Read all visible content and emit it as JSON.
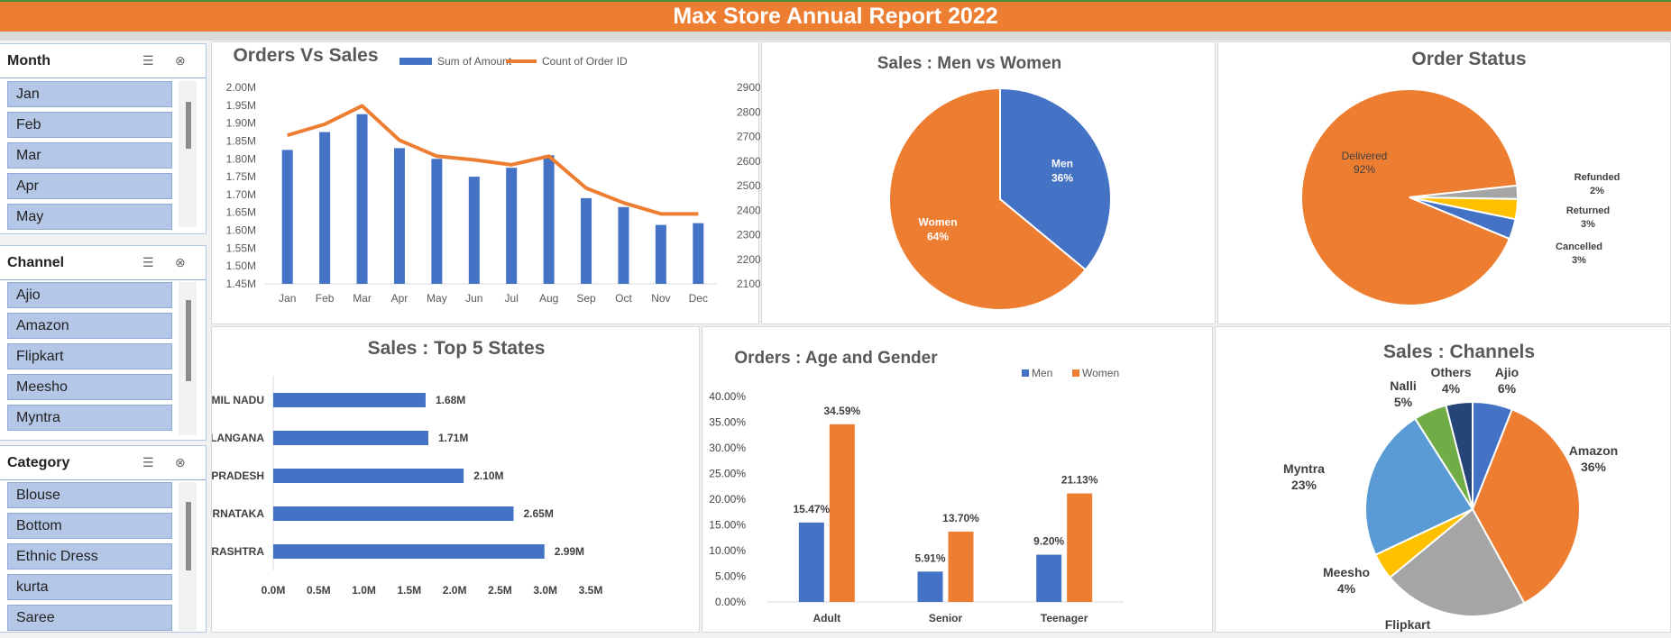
{
  "header": {
    "title": "Max Store Annual Report 2022"
  },
  "slicers": [
    {
      "title": "Month",
      "items": [
        "Jan",
        "Feb",
        "Mar",
        "Apr",
        "May"
      ]
    },
    {
      "title": "Channel",
      "items": [
        "Ajio",
        "Amazon",
        "Flipkart",
        "Meesho",
        "Myntra"
      ]
    },
    {
      "title": "Category",
      "items": [
        "Blouse",
        "Bottom",
        "Ethnic Dress",
        "kurta",
        "Saree"
      ]
    }
  ],
  "colors": {
    "blue": "#4472c4",
    "orange": "#ed7d31",
    "gray": "#a5a5a5",
    "yellow": "#ffc000",
    "lightblue": "#5b9bd5",
    "green": "#70ad47",
    "navy": "#264478"
  },
  "chart_data": [
    {
      "id": "orders-vs-sales",
      "type": "bar+line",
      "title": "Orders Vs Sales",
      "categories": [
        "Jan",
        "Feb",
        "Mar",
        "Apr",
        "May",
        "Jun",
        "Jul",
        "Aug",
        "Sep",
        "Oct",
        "Nov",
        "Dec"
      ],
      "series": [
        {
          "name": "Sum of Amount",
          "type": "bar",
          "axis": "left",
          "values": [
            1.825,
            1.875,
            1.925,
            1.83,
            1.8,
            1.75,
            1.775,
            1.81,
            1.69,
            1.665,
            1.615,
            1.62
          ]
        },
        {
          "name": "Count of Order ID",
          "type": "line",
          "axis": "right",
          "values": [
            2705,
            2750,
            2825,
            2685,
            2620,
            2605,
            2585,
            2620,
            2490,
            2430,
            2385,
            2385
          ]
        }
      ],
      "yleft": {
        "min": 1.45,
        "max": 2.0,
        "ticks": [
          "1.45M",
          "1.50M",
          "1.55M",
          "1.60M",
          "1.65M",
          "1.70M",
          "1.75M",
          "1.80M",
          "1.85M",
          "1.90M",
          "1.95M",
          "2.00M"
        ]
      },
      "yright": {
        "min": 2100,
        "max": 2900,
        "ticks": [
          "2100",
          "2200",
          "2300",
          "2400",
          "2500",
          "2600",
          "2700",
          "2800",
          "2900"
        ]
      },
      "legend": "top-right",
      "grid": false
    },
    {
      "id": "men-vs-women",
      "type": "pie",
      "title": "Sales : Men vs Women",
      "labels": [
        "Men",
        "Women"
      ],
      "values": [
        36,
        64
      ],
      "data_labels": [
        "36%",
        "64%"
      ]
    },
    {
      "id": "order-status",
      "type": "pie",
      "title": "Order Status",
      "labels": [
        "Delivered",
        "Refunded",
        "Returned",
        "Cancelled"
      ],
      "values": [
        92,
        2,
        3,
        3
      ],
      "data_labels": [
        "92%",
        "2%",
        "3%",
        "3%"
      ]
    },
    {
      "id": "top-states",
      "type": "bar",
      "orientation": "horizontal",
      "title": "Sales : Top 5 States",
      "categories": [
        "TAMIL NADU",
        "TELANGANA",
        "UTTAR PRADESH",
        "KARNATAKA",
        "MAHARASHTRA"
      ],
      "values": [
        1.68,
        1.71,
        2.1,
        2.65,
        2.99
      ],
      "data_labels": [
        "1.68M",
        "1.71M",
        "2.10M",
        "2.65M",
        "2.99M"
      ],
      "xlim": [
        0,
        3.5
      ],
      "xticks": [
        "0.0M",
        "0.5M",
        "1.0M",
        "1.5M",
        "2.0M",
        "2.5M",
        "3.0M",
        "3.5M"
      ]
    },
    {
      "id": "age-gender",
      "type": "bar",
      "title": "Orders : Age and Gender",
      "categories": [
        "Adult",
        "Senior",
        "Teenager"
      ],
      "series": [
        {
          "name": "Men",
          "values": [
            15.47,
            5.91,
            9.2
          ],
          "data_labels": [
            "15.47%",
            "5.91%",
            "9.20%"
          ]
        },
        {
          "name": "Women",
          "values": [
            34.59,
            13.7,
            21.13
          ],
          "data_labels": [
            "34.59%",
            "13.70%",
            "21.13%"
          ]
        }
      ],
      "ylim": [
        0,
        40
      ],
      "yticks": [
        "0.00%",
        "5.00%",
        "10.00%",
        "15.00%",
        "20.00%",
        "25.00%",
        "30.00%",
        "35.00%",
        "40.00%"
      ],
      "legend": "top-right"
    },
    {
      "id": "channels",
      "type": "pie",
      "title": "Sales : Channels",
      "labels": [
        "Ajio",
        "Amazon",
        "Flipkart",
        "Meesho",
        "Myntra",
        "Nalli",
        "Others"
      ],
      "values": [
        6,
        36,
        22,
        4,
        23,
        5,
        4
      ],
      "data_labels": [
        "6%",
        "36%",
        "",
        "4%",
        "23%",
        "5%",
        "4%"
      ]
    }
  ]
}
